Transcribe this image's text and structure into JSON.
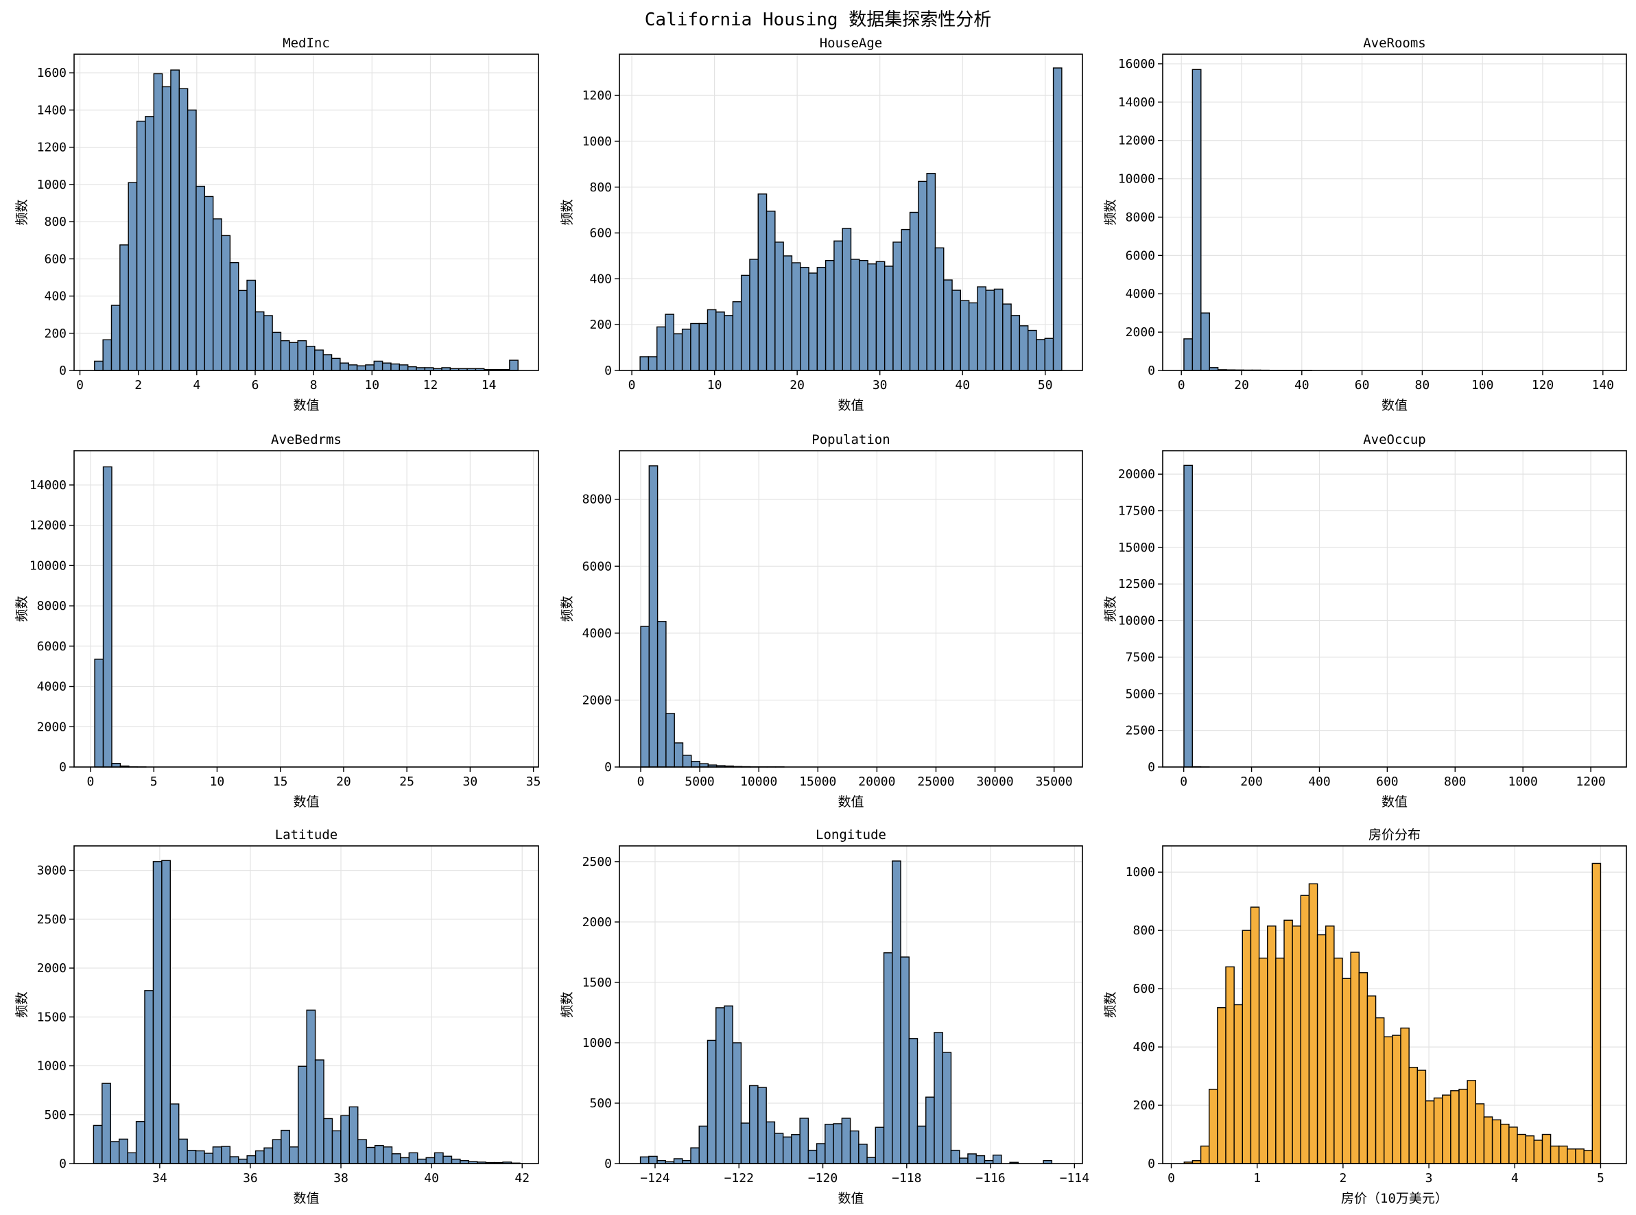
{
  "title": "California Housing 数据集探索性分析",
  "chart_data": [
    {
      "type": "histogram",
      "title": "MedInc",
      "xlabel": "数值",
      "ylabel": "频数",
      "xlim": [
        -0.2,
        15.7
      ],
      "ylim": [
        0,
        1700
      ],
      "xticks": [
        0,
        2,
        4,
        6,
        8,
        10,
        12,
        14
      ],
      "yticks": [
        0,
        200,
        400,
        600,
        800,
        1000,
        1200,
        1400,
        1600
      ],
      "bin_start": 0.5,
      "bin_width": 0.29,
      "values": [
        50,
        165,
        350,
        675,
        1010,
        1340,
        1365,
        1595,
        1525,
        1615,
        1515,
        1400,
        990,
        935,
        815,
        725,
        580,
        430,
        485,
        315,
        295,
        205,
        160,
        150,
        160,
        130,
        110,
        85,
        65,
        40,
        30,
        25,
        30,
        50,
        40,
        35,
        30,
        20,
        15,
        15,
        10,
        15,
        10,
        10,
        10,
        10,
        5,
        5,
        5,
        55
      ],
      "grid": true
    },
    {
      "type": "histogram",
      "title": "HouseAge",
      "xlabel": "数值",
      "ylabel": "频数",
      "xlim": [
        -1.5,
        54.5
      ],
      "ylim": [
        0,
        1380
      ],
      "xticks": [
        0,
        10,
        20,
        30,
        40,
        50
      ],
      "yticks": [
        0,
        200,
        400,
        600,
        800,
        1000,
        1200
      ],
      "bin_start": 1,
      "bin_width": 1.02,
      "values": [
        60,
        60,
        190,
        245,
        160,
        180,
        205,
        205,
        265,
        255,
        240,
        300,
        415,
        485,
        770,
        695,
        560,
        500,
        470,
        450,
        425,
        450,
        480,
        565,
        620,
        485,
        480,
        465,
        475,
        455,
        560,
        615,
        690,
        825,
        860,
        535,
        395,
        350,
        305,
        295,
        365,
        350,
        355,
        290,
        240,
        195,
        175,
        135,
        140,
        1320
      ],
      "grid": true
    },
    {
      "type": "histogram",
      "title": "AveRooms",
      "xlabel": "数值",
      "ylabel": "频数",
      "xlim": [
        -6.2,
        147.8
      ],
      "ylim": [
        0,
        16500
      ],
      "xticks": [
        0,
        20,
        40,
        60,
        80,
        100,
        120,
        140
      ],
      "yticks": [
        0,
        2000,
        4000,
        6000,
        8000,
        10000,
        12000,
        14000,
        16000
      ],
      "bin_start": 0.85,
      "bin_width": 2.83,
      "values": [
        1650,
        15700,
        3000,
        150,
        40,
        30,
        25,
        20,
        20,
        15,
        10,
        5,
        5,
        5,
        5,
        0,
        0,
        0,
        0,
        0,
        0,
        0,
        0,
        0,
        0,
        0,
        0,
        0,
        0,
        0,
        0,
        0,
        0,
        0,
        0,
        0,
        0,
        0,
        0,
        0,
        0,
        0,
        0,
        0,
        0,
        0,
        0,
        0,
        0,
        0
      ],
      "grid": true
    },
    {
      "type": "histogram",
      "title": "AveBedrms",
      "xlabel": "数值",
      "ylabel": "频数",
      "xlim": [
        -1.3,
        35.4
      ],
      "ylim": [
        0,
        15700
      ],
      "xticks": [
        0,
        5,
        10,
        15,
        20,
        25,
        30,
        35
      ],
      "yticks": [
        0,
        2000,
        4000,
        6000,
        8000,
        10000,
        12000,
        14000
      ],
      "bin_start": 0.33,
      "bin_width": 0.675,
      "values": [
        5350,
        14900,
        180,
        50,
        10,
        5,
        0,
        0,
        0,
        0,
        0,
        0,
        0,
        0,
        0,
        0,
        0,
        0,
        0,
        0,
        0,
        0,
        0,
        0,
        0,
        0,
        0,
        0,
        0,
        0,
        0,
        0,
        0,
        0,
        0,
        0,
        0,
        0,
        0,
        0,
        0,
        0,
        0,
        0,
        0,
        0,
        0,
        0,
        0,
        0
      ],
      "grid": true
    },
    {
      "type": "histogram",
      "title": "Population",
      "xlabel": "数值",
      "ylabel": "频数",
      "xlim": [
        -1800,
        37400
      ],
      "ylim": [
        0,
        9450
      ],
      "xticks": [
        0,
        5000,
        10000,
        15000,
        20000,
        25000,
        30000,
        35000
      ],
      "yticks": [
        0,
        2000,
        4000,
        6000,
        8000
      ],
      "bin_start": 3,
      "bin_width": 713.6,
      "values": [
        4200,
        9000,
        4350,
        1600,
        720,
        350,
        170,
        100,
        60,
        40,
        30,
        15,
        10,
        5,
        5,
        5,
        5,
        0,
        0,
        0,
        0,
        0,
        0,
        0,
        0,
        0,
        0,
        0,
        0,
        0,
        0,
        0,
        0,
        0,
        0,
        0,
        0,
        0,
        0,
        0,
        0,
        0,
        0,
        0,
        0,
        0,
        0,
        0,
        0,
        0
      ],
      "grid": true
    },
    {
      "type": "histogram",
      "title": "AveOccup",
      "xlabel": "数值",
      "ylabel": "频数",
      "xlim": [
        -62,
        1305
      ],
      "ylim": [
        0,
        21600
      ],
      "xticks": [
        0,
        200,
        400,
        600,
        800,
        1000,
        1200
      ],
      "yticks": [
        0,
        2500,
        5000,
        7500,
        10000,
        12500,
        15000,
        17500,
        20000
      ],
      "bin_start": 0.7,
      "bin_width": 24.8,
      "values": [
        20600,
        20,
        5,
        0,
        0,
        0,
        0,
        0,
        0,
        0,
        0,
        0,
        0,
        0,
        0,
        0,
        0,
        0,
        0,
        0,
        0,
        0,
        0,
        0,
        0,
        0,
        0,
        0,
        0,
        0,
        0,
        0,
        0,
        0,
        0,
        0,
        0,
        0,
        0,
        0,
        0,
        0,
        0,
        0,
        0,
        0,
        0,
        0,
        0,
        0
      ],
      "grid": true
    },
    {
      "type": "histogram",
      "title": "Latitude",
      "xlabel": "数值",
      "ylabel": "频数",
      "xlim": [
        32.11,
        42.36
      ],
      "ylim": [
        0,
        3250
      ],
      "xticks": [
        34,
        36,
        38,
        40,
        42
      ],
      "yticks": [
        0,
        500,
        1000,
        1500,
        2000,
        2500,
        3000
      ],
      "bin_start": 32.54,
      "bin_width": 0.1882,
      "values": [
        390,
        820,
        225,
        250,
        110,
        430,
        1770,
        3090,
        3100,
        610,
        250,
        135,
        130,
        105,
        170,
        175,
        70,
        45,
        80,
        130,
        160,
        245,
        340,
        170,
        995,
        1570,
        1060,
        460,
        335,
        490,
        580,
        245,
        165,
        185,
        170,
        100,
        60,
        110,
        45,
        60,
        110,
        75,
        45,
        30,
        20,
        15,
        10,
        10,
        15,
        5
      ],
      "grid": true
    },
    {
      "type": "histogram",
      "title": "Longitude",
      "xlabel": "数值",
      "ylabel": "频数",
      "xlim": [
        -124.85,
        -113.81
      ],
      "ylim": [
        0,
        2630
      ],
      "xticks": [
        -124,
        -122,
        -120,
        -118,
        -116,
        -114
      ],
      "xtick_labels": [
        "−124",
        "−122",
        "−120",
        "−118",
        "−116",
        "−114"
      ],
      "yticks": [
        0,
        500,
        1000,
        1500,
        2000,
        2500
      ],
      "bin_start": -124.35,
      "bin_width": 0.2002,
      "values": [
        55,
        60,
        25,
        15,
        40,
        25,
        130,
        310,
        1020,
        1290,
        1305,
        1000,
        335,
        645,
        630,
        345,
        250,
        220,
        240,
        375,
        110,
        165,
        325,
        330,
        375,
        270,
        160,
        50,
        300,
        1745,
        2505,
        1710,
        1035,
        310,
        550,
        1085,
        920,
        110,
        45,
        80,
        65,
        25,
        70,
        0,
        10,
        0,
        0,
        0,
        25,
        0
      ],
      "grid": true
    },
    {
      "type": "histogram",
      "title": "房价分布",
      "xlabel": "房价（10万美元）",
      "ylabel": "频数",
      "xlim": [
        -0.1,
        5.3
      ],
      "ylim": [
        0,
        1090
      ],
      "xticks": [
        0,
        1,
        2,
        3,
        4,
        5
      ],
      "yticks": [
        0,
        200,
        400,
        600,
        800,
        1000
      ],
      "bin_start": 0.15,
      "bin_width": 0.097,
      "values": [
        5,
        10,
        60,
        255,
        535,
        675,
        545,
        800,
        880,
        705,
        815,
        705,
        835,
        815,
        920,
        960,
        785,
        815,
        705,
        635,
        725,
        655,
        575,
        500,
        435,
        440,
        465,
        330,
        320,
        215,
        225,
        235,
        250,
        255,
        285,
        205,
        160,
        150,
        135,
        125,
        100,
        95,
        80,
        100,
        60,
        60,
        50,
        50,
        45,
        1030
      ],
      "grid": true
    }
  ],
  "colors": {
    "bar_default": "#6f97bf",
    "bar_price": "#f5b03d",
    "edge": "#000000",
    "grid": "#e3e3e3"
  }
}
